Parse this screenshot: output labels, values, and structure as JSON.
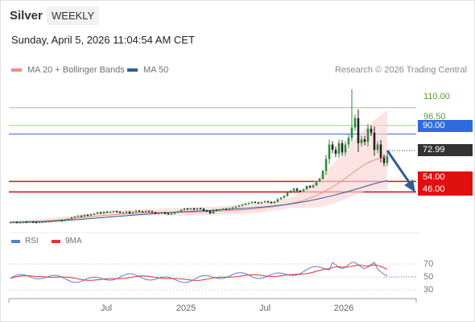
{
  "header": {
    "instrument": "Silver",
    "period": "WEEKLY",
    "datetime": "Sunday, April 5, 2026 11:04:54 AM CET"
  },
  "legend": {
    "bollinger": {
      "label": "MA 20 + Bollinger Bands",
      "color": "#f28b82"
    },
    "ma50": {
      "label": "MA 50",
      "color": "#2d5d9a"
    }
  },
  "credit": "Research © 2026 Trading Central",
  "rsi_legend": {
    "rsi": {
      "label": "RSI",
      "color": "#5b7fd6"
    },
    "ma9": {
      "label": "9MA",
      "color": "#e03030"
    }
  },
  "levels": {
    "l110": {
      "label": "110.00"
    },
    "l96": {
      "label": "96.50"
    },
    "l90": {
      "label": "90.00",
      "color": "#2f6bdc"
    },
    "l73": {
      "label": "72.99",
      "color": "#333333"
    },
    "l54": {
      "label": "54.00",
      "color": "#e01010"
    },
    "l46": {
      "label": "46.00",
      "color": "#e01010"
    }
  },
  "rsi_ticks": [
    "70",
    "50",
    "30"
  ],
  "x_ticks": [
    "Jul",
    "2025",
    "Jul",
    "2026"
  ],
  "chart_data": {
    "type": "candlestick",
    "x_axis": {
      "ticks": [
        "Jul",
        "2025",
        "Jul",
        "2026"
      ]
    },
    "y_range": [
      20,
      130
    ],
    "last_price": 72.99,
    "price_levels": [
      {
        "value": 110.0,
        "kind": "resistance",
        "color": "#9acd7a"
      },
      {
        "value": 96.5,
        "kind": "resistance",
        "color": "#9acd7a"
      },
      {
        "value": 90.0,
        "kind": "pivot",
        "color": "#2f6bdc"
      },
      {
        "value": 54.0,
        "kind": "support",
        "color": "#e01010"
      },
      {
        "value": 46.0,
        "kind": "support",
        "color": "#e01010"
      }
    ],
    "forecast": {
      "direction": "down",
      "target": 46.0
    },
    "close_series": [
      23.0,
      23.1,
      22.8,
      22.9,
      23.2,
      23.1,
      23.4,
      23.0,
      22.9,
      23.1,
      23.3,
      23.5,
      23.7,
      23.9,
      24.2,
      24.5,
      24.3,
      25.0,
      25.4,
      26.6,
      27.2,
      27.8,
      27.5,
      28.6,
      28.1,
      29.0,
      29.5,
      30.5,
      29.8,
      30.9,
      30.7,
      31.0,
      31.4,
      30.9,
      30.2,
      30.4,
      31.0,
      29.9,
      30.6,
      31.6,
      31.2,
      30.9,
      31.5,
      31.2,
      30.5,
      29.8,
      30.0,
      30.4,
      29.6,
      29.1,
      29.5,
      30.6,
      31.2,
      32.4,
      33.4,
      32.9,
      33.5,
      32.7,
      33.6,
      33.2,
      31.8,
      31.4,
      29.8,
      32.5,
      32.0,
      32.8,
      33.3,
      33.0,
      33.7,
      34.2,
      34.9,
      35.6,
      36.4,
      37.2,
      37.6,
      38.4,
      38.0,
      37.5,
      38.2,
      38.9,
      38.3,
      37.6,
      38.6,
      40.5,
      41.6,
      43.0,
      45.5,
      47.0,
      48.5,
      47.0,
      46.5,
      48.0,
      50.5,
      49.5,
      51.0,
      54.0,
      56.0,
      62.0,
      71.0,
      82.0,
      78.0,
      75.0,
      83.0,
      76.0,
      82.0,
      87.0,
      95.0,
      102.0,
      83.0,
      86.0,
      84.0,
      94.0,
      91.0,
      78.0,
      82.0,
      72.0,
      68.0,
      72.99
    ],
    "ma20": [
      23.0,
      23.1,
      23.2,
      23.4,
      23.6,
      23.8,
      24.1,
      24.4,
      24.8,
      25.2,
      25.6,
      26.1,
      26.6,
      27.1,
      27.6,
      28.0,
      28.4,
      28.8,
      29.1,
      29.4,
      29.7,
      29.9,
      30.1,
      30.3,
      30.4,
      30.5,
      30.6,
      30.6,
      30.6,
      30.6,
      30.7,
      30.8,
      31.0,
      31.2,
      31.4,
      31.6,
      31.9,
      32.1,
      32.4,
      32.7,
      33.1,
      33.6,
      34.1,
      34.7,
      35.4,
      36.2,
      37.1,
      38.1,
      39.3,
      40.8,
      42.6,
      44.8,
      47.2,
      49.8,
      52.8,
      56.0,
      59.4,
      62.8,
      66.0,
      68.6,
      70.4,
      72.0,
      73.4
    ],
    "ma50": [
      23.0,
      23.1,
      23.3,
      23.6,
      24.0,
      24.5,
      25.1,
      25.8,
      26.5,
      27.2,
      27.9,
      28.6,
      29.2,
      29.8,
      30.4,
      30.9,
      31.4,
      31.8,
      32.2,
      32.7,
      33.2,
      33.8,
      34.5,
      35.3,
      36.3,
      37.5,
      39.0,
      40.8,
      42.8,
      45.0,
      47.4,
      50.0,
      52.6,
      54.6
    ],
    "rsi": {
      "range": [
        0,
        100
      ],
      "levels": [
        70,
        50,
        30
      ],
      "last": 52,
      "ma9_last": 62
    }
  }
}
